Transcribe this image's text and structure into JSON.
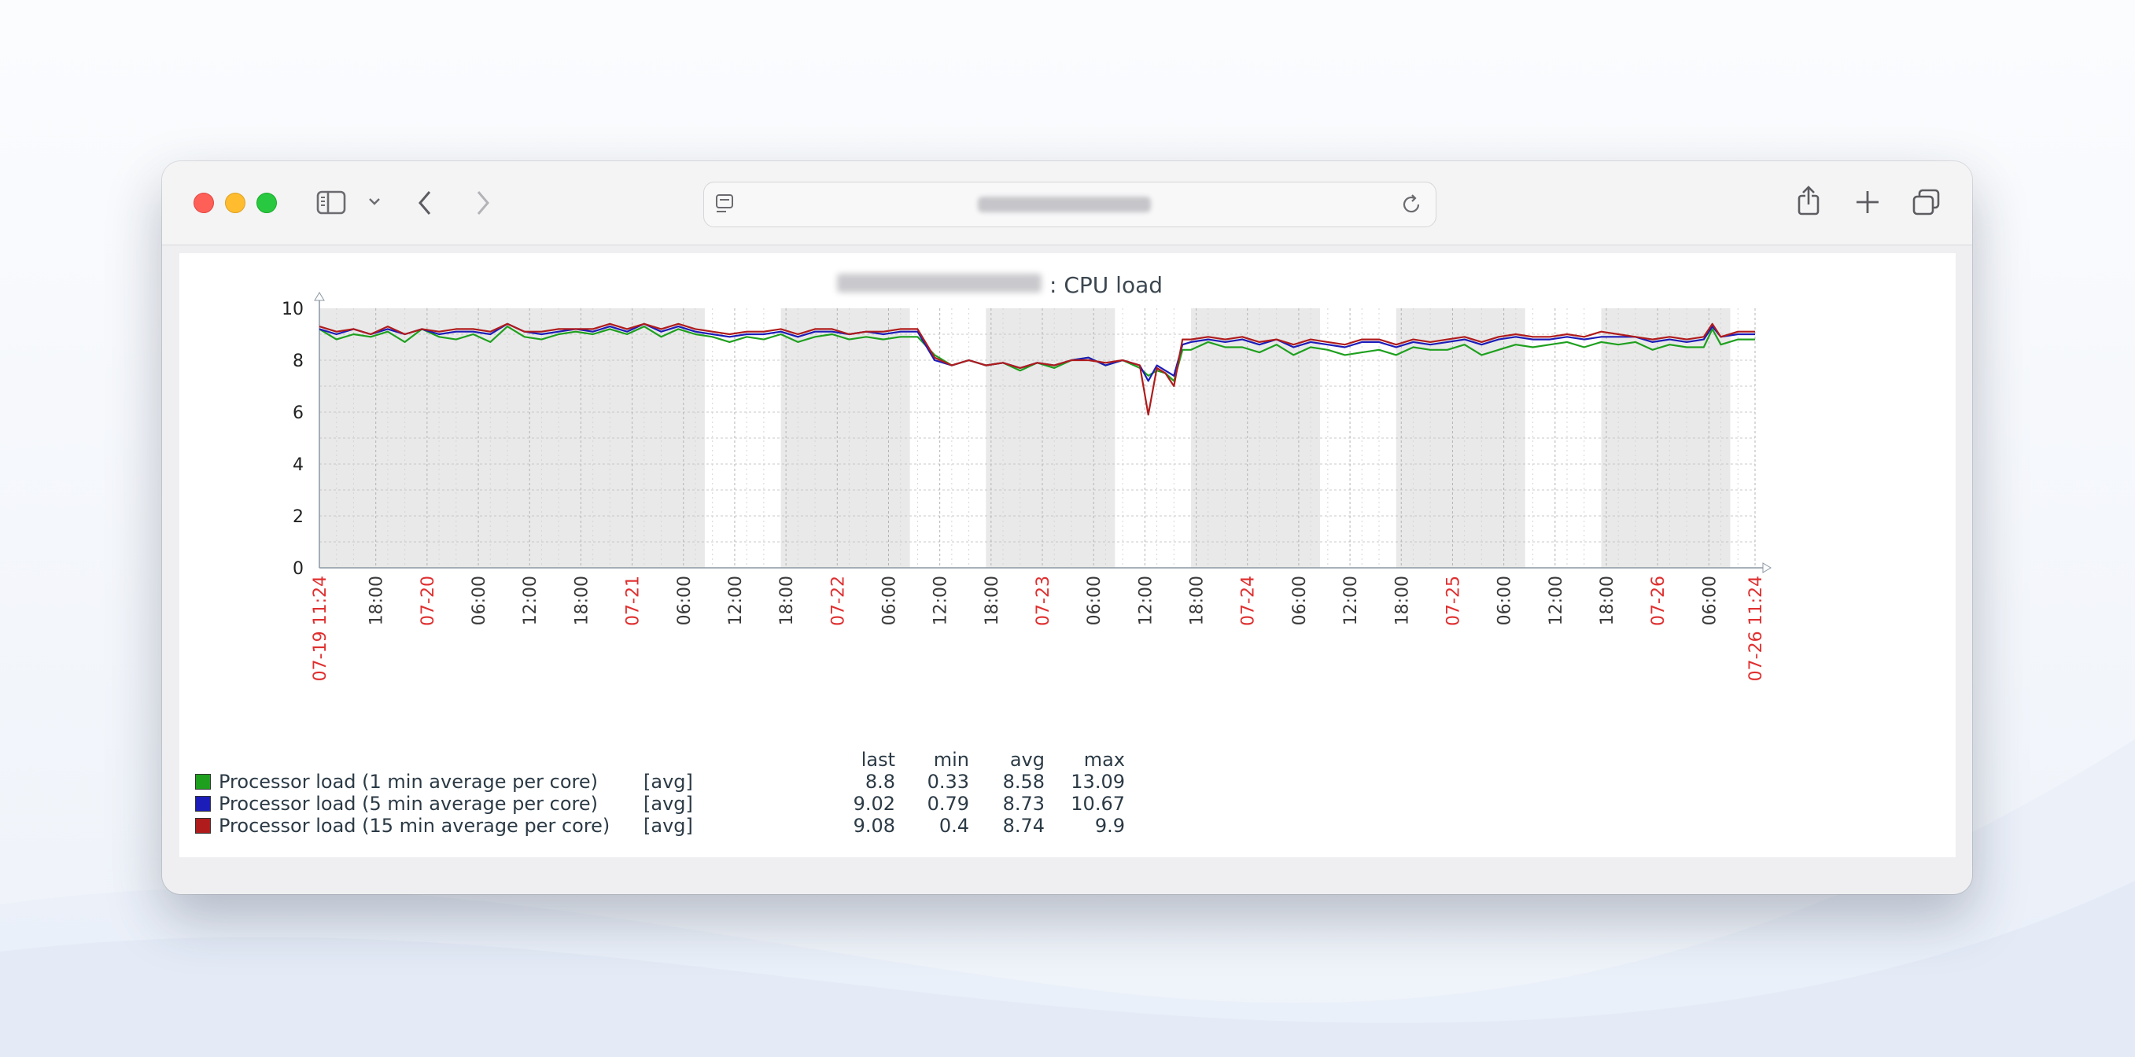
{
  "browser": {
    "window_controls": [
      "close",
      "minimize",
      "zoom"
    ],
    "icons": [
      "sidebar-icon",
      "chevron-down-icon",
      "back-icon",
      "forward-icon",
      "page-icon",
      "reload-icon",
      "share-icon",
      "plus-icon",
      "tabs-icon"
    ]
  },
  "chart": {
    "title_suffix": ": CPU load"
  },
  "chart_data": {
    "type": "line",
    "title": ": CPU load",
    "ylim": [
      0,
      10
    ],
    "y_ticks": [
      "0",
      "2",
      "4",
      "6",
      "8",
      "10"
    ],
    "x_start": "07-19 11:24",
    "x_end": "07-26 11:24",
    "x_ticks": [
      {
        "label": "07-19 11:24",
        "h": 0,
        "red": true
      },
      {
        "label": "18:00",
        "h": 6.6
      },
      {
        "label": "07-20",
        "h": 12.6,
        "red": true
      },
      {
        "label": "06:00",
        "h": 18.6
      },
      {
        "label": "12:00",
        "h": 24.6
      },
      {
        "label": "18:00",
        "h": 30.6
      },
      {
        "label": "07-21",
        "h": 36.6,
        "red": true
      },
      {
        "label": "06:00",
        "h": 42.6
      },
      {
        "label": "12:00",
        "h": 48.6
      },
      {
        "label": "18:00",
        "h": 54.6
      },
      {
        "label": "07-22",
        "h": 60.6,
        "red": true
      },
      {
        "label": "06:00",
        "h": 66.6
      },
      {
        "label": "12:00",
        "h": 72.6
      },
      {
        "label": "18:00",
        "h": 78.6
      },
      {
        "label": "07-23",
        "h": 84.6,
        "red": true
      },
      {
        "label": "06:00",
        "h": 90.6
      },
      {
        "label": "12:00",
        "h": 96.6
      },
      {
        "label": "18:00",
        "h": 102.6
      },
      {
        "label": "07-24",
        "h": 108.6,
        "red": true
      },
      {
        "label": "06:00",
        "h": 114.6
      },
      {
        "label": "12:00",
        "h": 120.6
      },
      {
        "label": "18:00",
        "h": 126.6
      },
      {
        "label": "07-25",
        "h": 132.6,
        "red": true
      },
      {
        "label": "06:00",
        "h": 138.6
      },
      {
        "label": "12:00",
        "h": 144.6
      },
      {
        "label": "18:00",
        "h": 150.6
      },
      {
        "label": "07-26",
        "h": 156.6,
        "red": true
      },
      {
        "label": "06:00",
        "h": 162.6
      },
      {
        "label": "07-26 11:24",
        "h": 168,
        "red": true
      }
    ],
    "shaded_hours": [
      [
        0,
        45.1
      ],
      [
        54,
        69.1
      ],
      [
        78,
        93.1
      ],
      [
        102,
        117.1
      ],
      [
        126,
        141.1
      ],
      [
        150,
        165.1
      ]
    ],
    "series": [
      {
        "name": "Processor load (1 min average per core)",
        "color": "#1ea01e",
        "x": [
          0,
          2,
          4,
          6,
          8,
          10,
          12,
          14,
          16,
          18,
          20,
          22,
          24,
          26,
          28,
          30,
          32,
          34,
          36,
          38,
          40,
          42,
          44,
          46,
          48,
          50,
          52,
          54,
          56,
          58,
          60,
          62,
          64,
          66,
          68,
          70,
          72,
          74,
          76,
          78,
          80,
          82,
          84,
          86,
          88,
          90,
          92,
          94,
          96,
          97,
          98,
          99,
          100,
          101,
          102,
          104,
          106,
          108,
          110,
          112,
          114,
          116,
          118,
          120,
          122,
          124,
          126,
          128,
          130,
          132,
          134,
          136,
          138,
          140,
          142,
          144,
          146,
          148,
          150,
          152,
          154,
          156,
          158,
          160,
          162,
          163,
          164,
          166,
          168
        ],
        "y": [
          9.2,
          8.8,
          9.0,
          8.9,
          9.1,
          8.7,
          9.2,
          8.9,
          8.8,
          9.0,
          8.7,
          9.3,
          8.9,
          8.8,
          9.0,
          9.1,
          9.0,
          9.2,
          9.0,
          9.3,
          8.9,
          9.2,
          9.0,
          8.9,
          8.7,
          8.9,
          8.8,
          9.0,
          8.7,
          8.9,
          9.0,
          8.8,
          8.9,
          8.8,
          8.9,
          8.9,
          8.2,
          7.8,
          8.0,
          7.8,
          7.9,
          7.6,
          7.9,
          7.7,
          8.0,
          8.1,
          7.8,
          8.0,
          7.7,
          7.4,
          7.6,
          7.5,
          7.2,
          8.4,
          8.4,
          8.7,
          8.5,
          8.5,
          8.3,
          8.6,
          8.2,
          8.5,
          8.4,
          8.2,
          8.3,
          8.4,
          8.2,
          8.5,
          8.4,
          8.4,
          8.6,
          8.2,
          8.4,
          8.6,
          8.5,
          8.6,
          8.7,
          8.5,
          8.7,
          8.6,
          8.7,
          8.4,
          8.6,
          8.5,
          8.5,
          9.2,
          8.6,
          8.8,
          8.8
        ]
      },
      {
        "name": "Processor load (5 min average per core)",
        "color": "#1c1cb8",
        "x": [
          0,
          2,
          4,
          6,
          8,
          10,
          12,
          14,
          16,
          18,
          20,
          22,
          24,
          26,
          28,
          30,
          32,
          34,
          36,
          38,
          40,
          42,
          44,
          46,
          48,
          50,
          52,
          54,
          56,
          58,
          60,
          62,
          64,
          66,
          68,
          70,
          72,
          74,
          76,
          78,
          80,
          82,
          84,
          86,
          88,
          90,
          92,
          94,
          96,
          97,
          98,
          99,
          100,
          101,
          102,
          104,
          106,
          108,
          110,
          112,
          114,
          116,
          118,
          120,
          122,
          124,
          126,
          128,
          130,
          132,
          134,
          136,
          138,
          140,
          142,
          144,
          146,
          148,
          150,
          152,
          154,
          156,
          158,
          160,
          162,
          163,
          164,
          166,
          168
        ],
        "y": [
          9.2,
          9.0,
          9.2,
          9.0,
          9.2,
          9.0,
          9.2,
          9.0,
          9.1,
          9.1,
          9.0,
          9.4,
          9.1,
          9.0,
          9.1,
          9.2,
          9.1,
          9.3,
          9.1,
          9.4,
          9.1,
          9.3,
          9.1,
          9.0,
          8.9,
          9.0,
          9.0,
          9.1,
          8.9,
          9.1,
          9.1,
          9.0,
          9.1,
          9.0,
          9.1,
          9.1,
          8.0,
          7.8,
          8.0,
          7.8,
          7.9,
          7.7,
          7.9,
          7.8,
          8.0,
          8.1,
          7.8,
          8.0,
          7.8,
          7.2,
          7.8,
          7.6,
          7.4,
          8.6,
          8.7,
          8.8,
          8.7,
          8.8,
          8.6,
          8.8,
          8.5,
          8.7,
          8.6,
          8.5,
          8.7,
          8.7,
          8.5,
          8.7,
          8.6,
          8.7,
          8.8,
          8.6,
          8.8,
          8.9,
          8.8,
          8.8,
          8.9,
          8.8,
          8.9,
          8.9,
          8.9,
          8.7,
          8.8,
          8.7,
          8.8,
          9.3,
          8.9,
          9.0,
          9.0
        ]
      },
      {
        "name": "Processor load (15 min average per core)",
        "color": "#b01c1c",
        "x": [
          0,
          2,
          4,
          6,
          8,
          10,
          12,
          14,
          16,
          18,
          20,
          22,
          24,
          26,
          28,
          30,
          32,
          34,
          36,
          38,
          40,
          42,
          44,
          46,
          48,
          50,
          52,
          54,
          56,
          58,
          60,
          62,
          64,
          66,
          68,
          70,
          72,
          74,
          76,
          78,
          80,
          82,
          84,
          86,
          88,
          90,
          92,
          94,
          96,
          97,
          98,
          99,
          100,
          101,
          102,
          104,
          106,
          108,
          110,
          112,
          114,
          116,
          118,
          120,
          122,
          124,
          126,
          128,
          130,
          132,
          134,
          136,
          138,
          140,
          142,
          144,
          146,
          148,
          150,
          152,
          154,
          156,
          158,
          160,
          162,
          163,
          164,
          166,
          168
        ],
        "y": [
          9.3,
          9.1,
          9.2,
          9.0,
          9.3,
          9.0,
          9.2,
          9.1,
          9.2,
          9.2,
          9.1,
          9.4,
          9.1,
          9.1,
          9.2,
          9.2,
          9.2,
          9.4,
          9.2,
          9.4,
          9.2,
          9.4,
          9.2,
          9.1,
          9.0,
          9.1,
          9.1,
          9.2,
          9.0,
          9.2,
          9.2,
          9.0,
          9.1,
          9.1,
          9.2,
          9.2,
          8.1,
          7.8,
          8.0,
          7.8,
          7.9,
          7.7,
          7.9,
          7.8,
          8.0,
          8.0,
          7.9,
          8.0,
          7.8,
          5.9,
          7.7,
          7.5,
          7.0,
          8.8,
          8.8,
          8.9,
          8.8,
          8.9,
          8.7,
          8.8,
          8.6,
          8.8,
          8.7,
          8.6,
          8.8,
          8.8,
          8.6,
          8.8,
          8.7,
          8.8,
          8.9,
          8.7,
          8.9,
          9.0,
          8.9,
          8.9,
          9.0,
          8.9,
          9.1,
          9.0,
          8.9,
          8.8,
          8.9,
          8.8,
          8.9,
          9.4,
          8.9,
          9.1,
          9.1
        ]
      }
    ],
    "legend": {
      "headers": [
        "last",
        "min",
        "avg",
        "max"
      ],
      "rows": [
        {
          "name": "Processor load (1 min average per core)",
          "color": "#1ea01e",
          "func": "[avg]",
          "last": "8.8",
          "min": "0.33",
          "avg": "8.58",
          "max": "13.09"
        },
        {
          "name": "Processor load (5 min average per core)",
          "color": "#1c1cb8",
          "func": "[avg]",
          "last": "9.02",
          "min": "0.79",
          "avg": "8.73",
          "max": "10.67"
        },
        {
          "name": "Processor load (15 min average per core)",
          "color": "#b01c1c",
          "func": "[avg]",
          "last": "9.08",
          "min": "0.4",
          "avg": "8.74",
          "max": "9.9"
        }
      ]
    }
  }
}
